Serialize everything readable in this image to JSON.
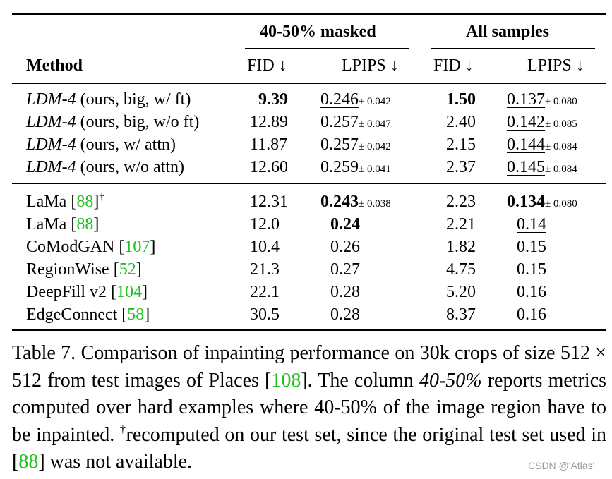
{
  "table": {
    "group_headers": {
      "masked": "40-50% masked",
      "all": "All samples"
    },
    "columns": {
      "method": "Method",
      "fid": "FID ↓",
      "lpips": "LPIPS ↓"
    },
    "pm_sign": "±",
    "ldm_rows": [
      {
        "name": "LDM-4",
        "desc": "(ours, big, w/ ft)",
        "fid_m": "9.39",
        "lpips_m": "0.246",
        "lpips_m_std": "0.042",
        "fid_a": "1.50",
        "lpips_a": "0.137",
        "lpips_a_std": "0.080"
      },
      {
        "name": "LDM-4",
        "desc": "(ours, big, w/o ft)",
        "fid_m": "12.89",
        "lpips_m": "0.257",
        "lpips_m_std": "0.047",
        "fid_a": "2.40",
        "lpips_a": "0.142",
        "lpips_a_std": "0.085"
      },
      {
        "name": "LDM-4",
        "desc": "(ours, w/ attn)",
        "fid_m": "11.87",
        "lpips_m": "0.257",
        "lpips_m_std": "0.042",
        "fid_a": "2.15",
        "lpips_a": "0.144",
        "lpips_a_std": "0.084"
      },
      {
        "name": "LDM-4",
        "desc": "(ours, w/o attn)",
        "fid_m": "12.60",
        "lpips_m": "0.259",
        "lpips_m_std": "0.041",
        "fid_a": "2.37",
        "lpips_a": "0.145",
        "lpips_a_std": "0.084"
      }
    ],
    "baseline_rows": [
      {
        "name": "LaMa",
        "cite": "88",
        "sup": "†",
        "fid_m": "12.31",
        "lpips_m": "0.243",
        "lpips_m_std": "0.038",
        "fid_a": "2.23",
        "lpips_a": "0.134",
        "lpips_a_std": "0.080"
      },
      {
        "name": "LaMa",
        "cite": "88",
        "fid_m": "12.0",
        "lpips_m": "0.24",
        "fid_a": "2.21",
        "lpips_a": "0.14"
      },
      {
        "name": "CoModGAN",
        "cite": "107",
        "fid_m": "10.4",
        "lpips_m": "0.26",
        "fid_a": "1.82",
        "lpips_a": "0.15"
      },
      {
        "name": "RegionWise",
        "cite": "52",
        "fid_m": "21.3",
        "lpips_m": "0.27",
        "fid_a": "4.75",
        "lpips_a": "0.15"
      },
      {
        "name": "DeepFill v2",
        "cite": "104",
        "fid_m": "22.1",
        "lpips_m": "0.28",
        "fid_a": "5.20",
        "lpips_a": "0.16"
      },
      {
        "name": "EdgeConnect",
        "cite": "58",
        "fid_m": "30.5",
        "lpips_m": "0.28",
        "fid_a": "8.37",
        "lpips_a": "0.16"
      }
    ]
  },
  "caption": {
    "part1": "Table 7.  Comparison of inpainting performance on 30k crops of size ",
    "size_expr": "512 × 512",
    "part2": " from test images of Places [",
    "cite1": "108",
    "part3": "]. The column ",
    "italic_col": "40-50%",
    "part4": " reports metrics computed over hard examples where 40-50% of the image region have to be inpainted. ",
    "dagger": "†",
    "part5": "recomputed on our test set, since the original test set used in [",
    "cite2": "88",
    "part6": "] was not available."
  },
  "watermark": "CSDN @'Atlas'"
}
